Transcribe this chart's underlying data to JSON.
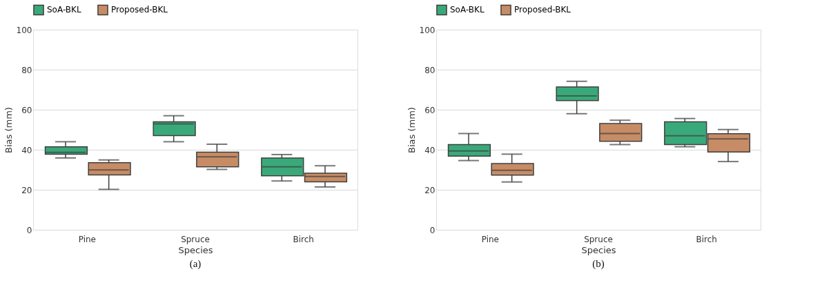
{
  "chart_data": [
    {
      "type": "box",
      "xlabel": "Species",
      "ylabel": "Bias (mm)",
      "categories": [
        "Pine",
        "Spruce",
        "Birch"
      ],
      "ylim": [
        0,
        100
      ],
      "yticks": [
        0,
        20,
        40,
        60,
        80,
        100
      ],
      "grid": "y",
      "legend": "top",
      "annotations": [
        "(a)"
      ],
      "series": [
        {
          "name": "SoA-BKL",
          "color": "#3aa97a",
          "boxes": [
            {
              "low": 35.9,
              "q1": 37.8,
              "median": 38.7,
              "q3": 41.5,
              "high": 44
            },
            {
              "low": 44,
              "q1": 47.1,
              "median": 52.9,
              "q3": 54,
              "high": 57
            },
            {
              "low": 24.4,
              "q1": 27,
              "median": 31.5,
              "q3": 35.9,
              "high": 37.6
            }
          ]
        },
        {
          "name": "Proposed-BKL",
          "color": "#c78c65",
          "boxes": [
            {
              "low": 20.2,
              "q1": 27.4,
              "median": 29.9,
              "q3": 33.5,
              "high": 34.9
            },
            {
              "low": 30.2,
              "q1": 31.5,
              "median": 36.5,
              "q3": 38.8,
              "high": 42.8
            },
            {
              "low": 21.4,
              "q1": 24,
              "median": 26.6,
              "q3": 28.3,
              "high": 32
            }
          ]
        }
      ]
    },
    {
      "type": "box",
      "xlabel": "Species",
      "ylabel": "Bias (mm)",
      "categories": [
        "Pine",
        "Spruce",
        "Birch"
      ],
      "ylim": [
        0,
        100
      ],
      "yticks": [
        0,
        20,
        40,
        60,
        80,
        100
      ],
      "grid": "y",
      "legend": "top",
      "annotations": [
        "(b)"
      ],
      "series": [
        {
          "name": "SoA-BKL",
          "color": "#3aa97a",
          "boxes": [
            {
              "low": 34.6,
              "q1": 36.8,
              "median": 39.4,
              "q3": 42.6,
              "high": 48.1
            },
            {
              "low": 58,
              "q1": 64.6,
              "median": 66.9,
              "q3": 71.4,
              "high": 74.2
            },
            {
              "low": 41.5,
              "q1": 42.6,
              "median": 47,
              "q3": 54,
              "high": 55.6
            }
          ]
        },
        {
          "name": "Proposed-BKL",
          "color": "#c78c65",
          "boxes": [
            {
              "low": 23.9,
              "q1": 27.3,
              "median": 29.7,
              "q3": 33.1,
              "high": 37.8
            },
            {
              "low": 42.6,
              "q1": 44.2,
              "median": 48.1,
              "q3": 53.1,
              "high": 54.7
            },
            {
              "low": 34.1,
              "q1": 38.9,
              "median": 45.4,
              "q3": 48,
              "high": 50.1
            }
          ]
        }
      ]
    }
  ]
}
